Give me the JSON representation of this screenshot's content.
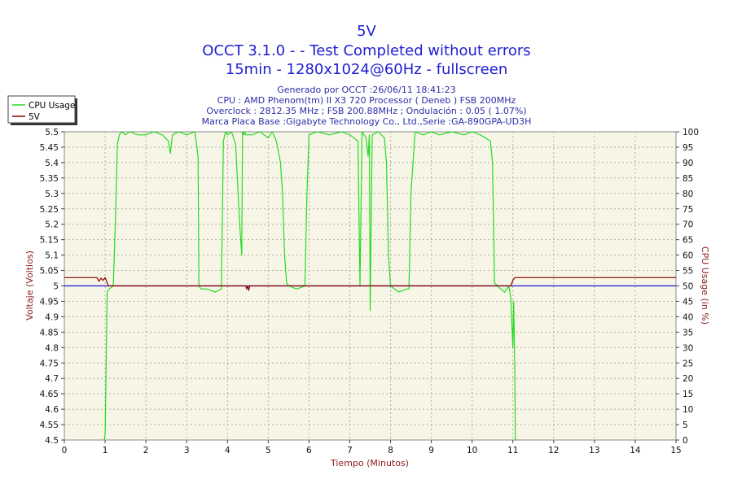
{
  "chart_data": {
    "type": "line",
    "title": "5V",
    "subtitle_lines": [
      "OCCT 3.1.0 -  - Test Completed without errors",
      "15min - 1280x1024@60Hz - fullscreen"
    ],
    "info_lines": [
      "Generado por OCCT :26/06/11 18:41:23",
      "CPU : AMD Phenom(tm) II X3 720 Processor ( Deneb ) FSB 200MHz",
      "Overclock : 2812.35 MHz ; FSB 200.88MHz ; Ondulación : 0.05 ( 1.07%)",
      "Marca Placa Base :Gigabyte Technology Co., Ltd.,Serie :GA-890GPA-UD3H"
    ],
    "xlabel": "Tiempo (Minutos)",
    "ylabel_left": "Voltaje (Voltios)",
    "ylabel_right": "CPU Usage (in %)",
    "xlim": [
      0,
      15
    ],
    "ylim_left": [
      4.5,
      5.5
    ],
    "ylim_right": [
      0,
      100
    ],
    "x_ticks": [
      "0",
      "1",
      "2",
      "3",
      "4",
      "5",
      "6",
      "7",
      "8",
      "9",
      "10",
      "11",
      "12",
      "13",
      "14",
      "15"
    ],
    "y_left_ticks": [
      "4.5",
      "4.55",
      "4.6",
      "4.65",
      "4.7",
      "4.75",
      "4.8",
      "4.85",
      "4.9",
      "4.95",
      "5",
      "5.05",
      "5.1",
      "5.15",
      "5.2",
      "5.25",
      "5.3",
      "5.35",
      "5.4",
      "5.45",
      "5.5"
    ],
    "y_right_ticks": [
      "0",
      "5",
      "10",
      "15",
      "20",
      "25",
      "30",
      "35",
      "40",
      "45",
      "50",
      "55",
      "60",
      "65",
      "70",
      "75",
      "80",
      "85",
      "90",
      "95",
      "100"
    ],
    "grid": true,
    "legend_position": "top-left",
    "background_color": "#f7f5e6",
    "reference_line": {
      "value": 5.0,
      "axis": "left",
      "color": "#1a1ad6"
    },
    "series": [
      {
        "name": "CPU Usage",
        "axis": "right",
        "color": "#22dd22",
        "x": [
          0.98,
          1.0,
          1.03,
          1.05,
          1.1,
          1.2,
          1.25,
          1.3,
          1.35,
          1.4,
          1.5,
          1.6,
          1.8,
          2.0,
          2.2,
          2.4,
          2.55,
          2.6,
          2.65,
          2.8,
          3.0,
          3.2,
          3.28,
          3.3,
          3.35,
          3.5,
          3.7,
          3.85,
          3.9,
          3.95,
          4.0,
          4.1,
          4.2,
          4.3,
          4.35,
          4.37,
          4.4,
          4.42,
          4.45,
          4.6,
          4.8,
          5.0,
          5.1,
          5.2,
          5.3,
          5.35,
          5.4,
          5.45,
          5.5,
          5.7,
          5.9,
          5.95,
          6.0,
          6.2,
          6.5,
          6.8,
          7.0,
          7.2,
          7.25,
          7.3,
          7.4,
          7.45,
          7.48,
          7.5,
          7.55,
          7.7,
          7.85,
          7.9,
          7.95,
          8.0,
          8.2,
          8.4,
          8.45,
          8.5,
          8.6,
          8.8,
          9.0,
          9.2,
          9.5,
          9.8,
          10.0,
          10.2,
          10.45,
          10.5,
          10.55,
          10.7,
          10.8,
          10.9,
          10.95,
          11.0,
          11.02,
          11.05,
          11.06,
          11.1
        ],
        "y": [
          0,
          2,
          30,
          48,
          49,
          50,
          70,
          96,
          99,
          100,
          99,
          100,
          99,
          99,
          100,
          99,
          97,
          93,
          99,
          100,
          99,
          100,
          92,
          50,
          49,
          49,
          48,
          49,
          97,
          100,
          99,
          100,
          96,
          70,
          60,
          100,
          99,
          100,
          99,
          99,
          100,
          98,
          100,
          97,
          90,
          80,
          60,
          51,
          50,
          49,
          50,
          80,
          99,
          100,
          99,
          100,
          99,
          97,
          50,
          100,
          98,
          92,
          99,
          42,
          99,
          100,
          98,
          90,
          60,
          50,
          48,
          49,
          49,
          80,
          100,
          99,
          100,
          99,
          100,
          99,
          100,
          99,
          97,
          90,
          51,
          49,
          48,
          50,
          46,
          30,
          45,
          20,
          0,
          0
        ]
      },
      {
        "name": "5V",
        "axis": "left",
        "color": "#8b0000",
        "x": [
          0,
          0.7,
          0.8,
          0.85,
          0.9,
          0.95,
          1.0,
          1.05,
          1.08,
          4.45,
          4.47,
          4.5,
          4.52,
          4.55,
          10.9,
          10.95,
          11.0,
          11.05,
          15
        ],
        "y": [
          5.027,
          5.027,
          5.027,
          5.015,
          5.025,
          5.018,
          5.027,
          5.01,
          5.0,
          5.0,
          4.99,
          5.0,
          4.985,
          5.0,
          5.0,
          5.0,
          5.018,
          5.027,
          5.027
        ]
      }
    ]
  }
}
